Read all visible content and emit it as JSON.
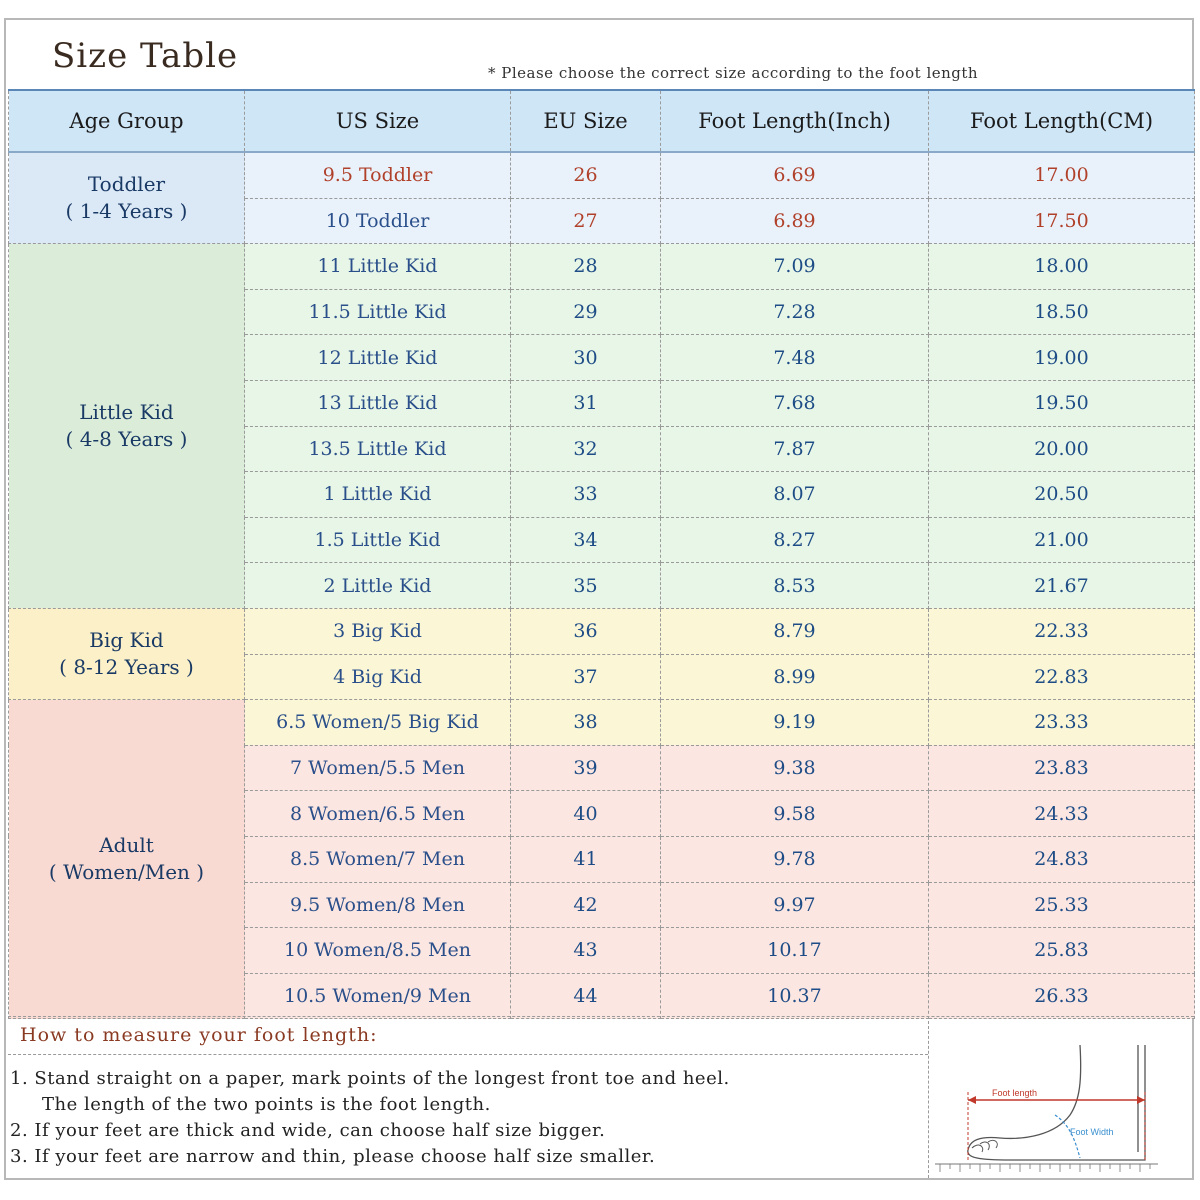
{
  "title": "Size Table",
  "note": "* Please choose the correct size according to the foot length",
  "headers": [
    "Age Group",
    "US Size",
    "EU Size",
    "Foot Length(Inch)",
    "Foot Length(CM)"
  ],
  "groups": [
    {
      "label": "Toddler",
      "sub": "( 1-4 Years )"
    },
    {
      "label": "Little Kid",
      "sub": "( 4-8 Years )"
    },
    {
      "label": "Big Kid",
      "sub": "( 8-12 Years )"
    },
    {
      "label": "Adult",
      "sub": "( Women/Men )"
    }
  ],
  "rows": [
    {
      "us": "9.5 Toddler",
      "eu": "26",
      "inch": "6.69",
      "cm": "17.00"
    },
    {
      "us": "10 Toddler",
      "eu": "27",
      "inch": "6.89",
      "cm": "17.50"
    },
    {
      "us": "11 Little Kid",
      "eu": "28",
      "inch": "7.09",
      "cm": "18.00"
    },
    {
      "us": "11.5 Little Kid",
      "eu": "29",
      "inch": "7.28",
      "cm": "18.50"
    },
    {
      "us": "12 Little Kid",
      "eu": "30",
      "inch": "7.48",
      "cm": "19.00"
    },
    {
      "us": "13 Little Kid",
      "eu": "31",
      "inch": "7.68",
      "cm": "19.50"
    },
    {
      "us": "13.5 Little Kid",
      "eu": "32",
      "inch": "7.87",
      "cm": "20.00"
    },
    {
      "us": "1 Little Kid",
      "eu": "33",
      "inch": "8.07",
      "cm": "20.50"
    },
    {
      "us": "1.5 Little Kid",
      "eu": "34",
      "inch": "8.27",
      "cm": "21.00"
    },
    {
      "us": "2 Little Kid",
      "eu": "35",
      "inch": "8.53",
      "cm": "21.67"
    },
    {
      "us": "3 Big Kid",
      "eu": "36",
      "inch": "8.79",
      "cm": "22.33"
    },
    {
      "us": "4 Big Kid",
      "eu": "37",
      "inch": "8.99",
      "cm": "22.83"
    },
    {
      "us": "6.5 Women/5 Big Kid",
      "eu": "38",
      "inch": "9.19",
      "cm": "23.33"
    },
    {
      "us": "7 Women/5.5 Men",
      "eu": "39",
      "inch": "9.38",
      "cm": "23.83"
    },
    {
      "us": "8 Women/6.5 Men",
      "eu": "40",
      "inch": "9.58",
      "cm": "24.33"
    },
    {
      "us": "8.5 Women/7 Men",
      "eu": "41",
      "inch": "9.78",
      "cm": "24.83"
    },
    {
      "us": "9.5 Women/8 Men",
      "eu": "42",
      "inch": "9.97",
      "cm": "25.33"
    },
    {
      "us": "10 Women/8.5 Men",
      "eu": "43",
      "inch": "10.17",
      "cm": "25.83"
    },
    {
      "us": "10.5 Women/9 Men",
      "eu": "44",
      "inch": "10.37",
      "cm": "26.33"
    }
  ],
  "howto": {
    "title": "How to measure your foot length:",
    "steps": [
      "1. Stand straight on a paper, mark points of the longest front toe and heel.",
      "   The length of the two points is the foot length.",
      "2. If your feet are thick and wide, can choose half size bigger.",
      "3. If your feet are narrow and thin, please choose half size smaller."
    ]
  },
  "illustration": {
    "foot_length_label": "Foot length",
    "foot_width_label": "Foot Width",
    "line_color": "#c0392b",
    "width_color": "#3a8fd0"
  }
}
